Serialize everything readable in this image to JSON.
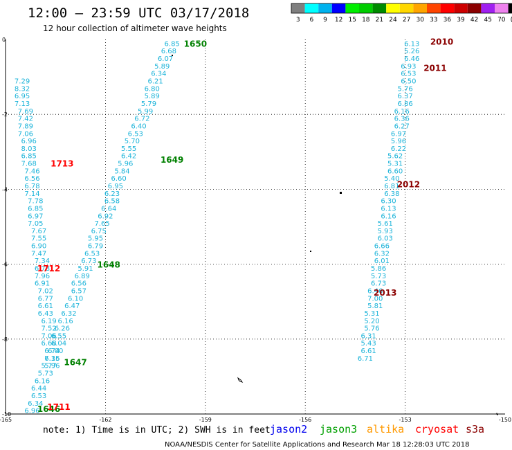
{
  "header": {
    "title": "12:00 — 23:59 UTC 03/17/2018",
    "subtitle": "12 hour collection of altimeter wave heights"
  },
  "color_scale": {
    "labels": [
      "3",
      "6",
      "9",
      "12",
      "15",
      "18",
      "21",
      "24",
      "27",
      "30",
      "33",
      "36",
      "39",
      "42",
      "45",
      "70",
      "(ft)"
    ],
    "colors": [
      "#7f7f7f",
      "#00ffff",
      "#00b2ee",
      "#0000ff",
      "#00ee00",
      "#00cd00",
      "#008b00",
      "#ffff00",
      "#ffd700",
      "#ffa500",
      "#ff4500",
      "#ff0000",
      "#cd0000",
      "#8b0000",
      "#a020f0",
      "#ee82ee",
      "#000000"
    ]
  },
  "chart_data": {
    "type": "scatter",
    "x_ticks": [
      "-165",
      "-162",
      "-159",
      "-156",
      "-153",
      "-150"
    ],
    "y_ticks": [
      "0",
      "-2",
      "-4",
      "-6",
      "-8",
      "-10"
    ],
    "xlim": [
      -165,
      -150
    ],
    "ylim": [
      -10,
      0
    ],
    "grid": true,
    "tracks": [
      {
        "satellite": "jason3",
        "color": "#008000",
        "points": [
          {
            "x": -160.0,
            "y": -0.1,
            "v": "6.85"
          },
          {
            "x": -160.1,
            "y": -0.3,
            "v": "6.68"
          },
          {
            "x": -160.2,
            "y": -0.5,
            "v": "6.07"
          },
          {
            "x": -160.3,
            "y": -0.7,
            "v": "5.89"
          },
          {
            "x": -160.4,
            "y": -0.9,
            "v": "6.34"
          },
          {
            "x": -160.5,
            "y": -1.1,
            "v": "6.21"
          },
          {
            "x": -160.6,
            "y": -1.3,
            "v": "6.80"
          },
          {
            "x": -160.6,
            "y": -1.5,
            "v": "5.89"
          },
          {
            "x": -160.7,
            "y": -1.7,
            "v": "5.79"
          },
          {
            "x": -160.8,
            "y": -1.9,
            "v": "5.99"
          },
          {
            "x": -160.9,
            "y": -2.1,
            "v": "6.72"
          },
          {
            "x": -161.0,
            "y": -2.3,
            "v": "6.40"
          },
          {
            "x": -161.1,
            "y": -2.5,
            "v": "6.53"
          },
          {
            "x": -161.2,
            "y": -2.7,
            "v": "5.70"
          },
          {
            "x": -161.3,
            "y": -2.9,
            "v": "5.55"
          },
          {
            "x": -161.3,
            "y": -3.1,
            "v": "6.42"
          },
          {
            "x": -161.4,
            "y": -3.3,
            "v": "5.96"
          },
          {
            "x": -161.5,
            "y": -3.5,
            "v": "5.84"
          },
          {
            "x": -161.6,
            "y": -3.7,
            "v": "6.60"
          },
          {
            "x": -161.7,
            "y": -3.9,
            "v": "6.95"
          },
          {
            "x": -161.8,
            "y": -4.1,
            "v": "6.23"
          },
          {
            "x": -161.8,
            "y": -4.3,
            "v": "6.58"
          },
          {
            "x": -161.9,
            "y": -4.5,
            "v": "6.64"
          },
          {
            "x": -162.0,
            "y": -4.7,
            "v": "6.92"
          },
          {
            "x": -162.1,
            "y": -4.9,
            "v": "7.65"
          },
          {
            "x": -162.2,
            "y": -5.1,
            "v": "6.75"
          },
          {
            "x": -162.3,
            "y": -5.3,
            "v": "5.95"
          },
          {
            "x": -162.3,
            "y": -5.5,
            "v": "6.79"
          },
          {
            "x": -162.4,
            "y": -5.7,
            "v": "6.53"
          },
          {
            "x": -162.5,
            "y": -5.9,
            "v": "6.73"
          },
          {
            "x": -162.6,
            "y": -6.1,
            "v": "5.91"
          },
          {
            "x": -162.7,
            "y": -6.3,
            "v": "6.89"
          },
          {
            "x": -162.8,
            "y": -6.5,
            "v": "6.56"
          },
          {
            "x": -162.8,
            "y": -6.7,
            "v": "6.57"
          },
          {
            "x": -162.9,
            "y": -6.9,
            "v": "6.10"
          },
          {
            "x": -163.0,
            "y": -7.1,
            "v": "6.47"
          },
          {
            "x": -163.1,
            "y": -7.3,
            "v": "6.32"
          },
          {
            "x": -163.2,
            "y": -7.5,
            "v": "6.16"
          },
          {
            "x": -163.3,
            "y": -7.7,
            "v": "6.26"
          },
          {
            "x": -163.4,
            "y": -7.9,
            "v": "6.55"
          },
          {
            "x": -163.4,
            "y": -8.1,
            "v": "6.04"
          },
          {
            "x": -163.5,
            "y": -8.3,
            "v": "6.00"
          },
          {
            "x": -163.6,
            "y": -8.5,
            "v": "6.35"
          },
          {
            "x": -163.7,
            "y": -8.7,
            "v": "5.77"
          },
          {
            "x": -163.8,
            "y": -8.9,
            "v": "5.73"
          },
          {
            "x": -163.9,
            "y": -9.1,
            "v": "6.16"
          },
          {
            "x": -164.0,
            "y": -9.3,
            "v": "6.44"
          },
          {
            "x": -164.0,
            "y": -9.5,
            "v": "6.53"
          },
          {
            "x": -164.1,
            "y": -9.7,
            "v": "6.34"
          },
          {
            "x": -164.2,
            "y": -9.9,
            "v": "6.96"
          }
        ]
      },
      {
        "satellite": "cryosat",
        "color": "#ff0000",
        "points": [
          {
            "x": -164.5,
            "y": -1.1,
            "v": "7.29"
          },
          {
            "x": -164.5,
            "y": -1.3,
            "v": "8.32"
          },
          {
            "x": -164.5,
            "y": -1.5,
            "v": "6.95"
          },
          {
            "x": -164.5,
            "y": -1.7,
            "v": "7.13"
          },
          {
            "x": -164.4,
            "y": -1.9,
            "v": "7.69"
          },
          {
            "x": -164.4,
            "y": -2.1,
            "v": "7.42"
          },
          {
            "x": -164.4,
            "y": -2.3,
            "v": "7.89"
          },
          {
            "x": -164.4,
            "y": -2.5,
            "v": "7.06"
          },
          {
            "x": -164.3,
            "y": -2.7,
            "v": "6.96"
          },
          {
            "x": -164.3,
            "y": -2.9,
            "v": "8.03"
          },
          {
            "x": -164.3,
            "y": -3.1,
            "v": "6.85"
          },
          {
            "x": -164.3,
            "y": -3.3,
            "v": "7.68"
          },
          {
            "x": -164.2,
            "y": -3.5,
            "v": "7.46"
          },
          {
            "x": -164.2,
            "y": -3.7,
            "v": "6.56"
          },
          {
            "x": -164.2,
            "y": -3.9,
            "v": "6.78"
          },
          {
            "x": -164.2,
            "y": -4.1,
            "v": "7.14"
          },
          {
            "x": -164.1,
            "y": -4.3,
            "v": "7.78"
          },
          {
            "x": -164.1,
            "y": -4.5,
            "v": "6.85"
          },
          {
            "x": -164.1,
            "y": -4.7,
            "v": "6.97"
          },
          {
            "x": -164.1,
            "y": -4.9,
            "v": "7.05"
          },
          {
            "x": -164.0,
            "y": -5.1,
            "v": "7.67"
          },
          {
            "x": -164.0,
            "y": -5.3,
            "v": "7.55"
          },
          {
            "x": -164.0,
            "y": -5.5,
            "v": "6.90"
          },
          {
            "x": -164.0,
            "y": -5.7,
            "v": "7.47"
          },
          {
            "x": -163.9,
            "y": -5.9,
            "v": "7.34"
          },
          {
            "x": -163.9,
            "y": -6.1,
            "v": "6.78"
          },
          {
            "x": -163.9,
            "y": -6.3,
            "v": "7.96"
          },
          {
            "x": -163.9,
            "y": -6.5,
            "v": "6.91"
          },
          {
            "x": -163.8,
            "y": -6.7,
            "v": "7.02"
          },
          {
            "x": -163.8,
            "y": -6.9,
            "v": "6.77"
          },
          {
            "x": -163.8,
            "y": -7.1,
            "v": "6.61"
          },
          {
            "x": -163.8,
            "y": -7.3,
            "v": "6.43"
          },
          {
            "x": -163.7,
            "y": -7.5,
            "v": "6.19"
          },
          {
            "x": -163.7,
            "y": -7.7,
            "v": "7.52"
          },
          {
            "x": -163.7,
            "y": -7.9,
            "v": "7.06"
          },
          {
            "x": -163.7,
            "y": -8.1,
            "v": "6.68"
          },
          {
            "x": -163.6,
            "y": -8.3,
            "v": "6.74"
          },
          {
            "x": -163.6,
            "y": -8.5,
            "v": "7.16"
          },
          {
            "x": -163.6,
            "y": -8.7,
            "v": "5.96"
          }
        ]
      },
      {
        "satellite": "s3a",
        "color": "#8b0000",
        "points": [
          {
            "x": -152.8,
            "y": -0.1,
            "v": "6.13"
          },
          {
            "x": -152.8,
            "y": -0.3,
            "v": "5.26"
          },
          {
            "x": -152.8,
            "y": -0.5,
            "v": "6.46"
          },
          {
            "x": -152.9,
            "y": -0.7,
            "v": "6.93"
          },
          {
            "x": -152.9,
            "y": -0.9,
            "v": "6.53"
          },
          {
            "x": -152.9,
            "y": -1.1,
            "v": "6.50"
          },
          {
            "x": -153.0,
            "y": -1.3,
            "v": "5.76"
          },
          {
            "x": -153.0,
            "y": -1.5,
            "v": "6.37"
          },
          {
            "x": -153.0,
            "y": -1.7,
            "v": "6.86"
          },
          {
            "x": -153.1,
            "y": -1.9,
            "v": "6.16"
          },
          {
            "x": -153.1,
            "y": -2.1,
            "v": "6.36"
          },
          {
            "x": -153.1,
            "y": -2.3,
            "v": "6.27"
          },
          {
            "x": -153.2,
            "y": -2.5,
            "v": "6.97"
          },
          {
            "x": -153.2,
            "y": -2.7,
            "v": "5.96"
          },
          {
            "x": -153.2,
            "y": -2.9,
            "v": "6.22"
          },
          {
            "x": -153.3,
            "y": -3.1,
            "v": "5.62"
          },
          {
            "x": -153.3,
            "y": -3.3,
            "v": "5.31"
          },
          {
            "x": -153.3,
            "y": -3.5,
            "v": "6.60"
          },
          {
            "x": -153.4,
            "y": -3.7,
            "v": "5.40"
          },
          {
            "x": -153.4,
            "y": -3.9,
            "v": "6.81"
          },
          {
            "x": -153.4,
            "y": -4.1,
            "v": "6.38"
          },
          {
            "x": -153.5,
            "y": -4.3,
            "v": "6.30"
          },
          {
            "x": -153.5,
            "y": -4.5,
            "v": "6.13"
          },
          {
            "x": -153.5,
            "y": -4.7,
            "v": "6.16"
          },
          {
            "x": -153.6,
            "y": -4.9,
            "v": "5.61"
          },
          {
            "x": -153.6,
            "y": -5.1,
            "v": "5.93"
          },
          {
            "x": -153.6,
            "y": -5.3,
            "v": "6.03"
          },
          {
            "x": -153.7,
            "y": -5.5,
            "v": "6.66"
          },
          {
            "x": -153.7,
            "y": -5.7,
            "v": "6.32"
          },
          {
            "x": -153.7,
            "y": -5.9,
            "v": "6.01"
          },
          {
            "x": -153.8,
            "y": -6.1,
            "v": "5.86"
          },
          {
            "x": -153.8,
            "y": -6.3,
            "v": "5.73"
          },
          {
            "x": -153.8,
            "y": -6.5,
            "v": "6.73"
          },
          {
            "x": -153.9,
            "y": -6.7,
            "v": "6.46"
          },
          {
            "x": -153.9,
            "y": -6.9,
            "v": "7.00"
          },
          {
            "x": -153.9,
            "y": -7.1,
            "v": "5.81"
          },
          {
            "x": -154.0,
            "y": -7.3,
            "v": "5.31"
          },
          {
            "x": -154.0,
            "y": -7.5,
            "v": "5.20"
          },
          {
            "x": -154.0,
            "y": -7.7,
            "v": "5.76"
          },
          {
            "x": -154.1,
            "y": -7.9,
            "v": "6.31"
          },
          {
            "x": -154.1,
            "y": -8.1,
            "v": "5.43"
          },
          {
            "x": -154.1,
            "y": -8.3,
            "v": "6.61"
          },
          {
            "x": -154.2,
            "y": -8.5,
            "v": "6.71"
          }
        ]
      }
    ],
    "time_labels": [
      {
        "x": -159.3,
        "y": -0.1,
        "v": "1650",
        "color": "#008000"
      },
      {
        "x": -160.0,
        "y": -3.2,
        "v": "1649",
        "color": "#008000"
      },
      {
        "x": -161.9,
        "y": -6.0,
        "v": "1648",
        "color": "#008000"
      },
      {
        "x": -162.9,
        "y": -8.6,
        "v": "1647",
        "color": "#008000"
      },
      {
        "x": -163.7,
        "y": -9.85,
        "v": "1646",
        "color": "#008000"
      },
      {
        "x": -163.3,
        "y": -3.3,
        "v": "1713",
        "color": "#ff0000"
      },
      {
        "x": -163.7,
        "y": -6.1,
        "v": "1712",
        "color": "#ff0000"
      },
      {
        "x": -163.4,
        "y": -9.8,
        "v": "1711",
        "color": "#ff0000"
      },
      {
        "x": -151.9,
        "y": -0.05,
        "v": "2010",
        "color": "#8b0000"
      },
      {
        "x": -152.1,
        "y": -0.75,
        "v": "2011",
        "color": "#8b0000"
      },
      {
        "x": -152.9,
        "y": -3.85,
        "v": "2012",
        "color": "#8b0000"
      },
      {
        "x": -153.6,
        "y": -6.75,
        "v": "2013",
        "color": "#8b0000"
      }
    ]
  },
  "legend": {
    "items": [
      {
        "label": "jason2",
        "color": "#0000ee"
      },
      {
        "label": "jason3",
        "color": "#00a000"
      },
      {
        "label": "altika",
        "color": "#ff9900"
      },
      {
        "label": "cryosat",
        "color": "#ff0000"
      },
      {
        "label": "s3a",
        "color": "#8b0000"
      }
    ]
  },
  "footer": {
    "note": "note:  1) Time is in UTC; 2) SWH is in feet",
    "credit": "NOAA/NESDIS Center for Satellite Applications and Research   Mar 18 12:28:03 UTC 2018"
  }
}
